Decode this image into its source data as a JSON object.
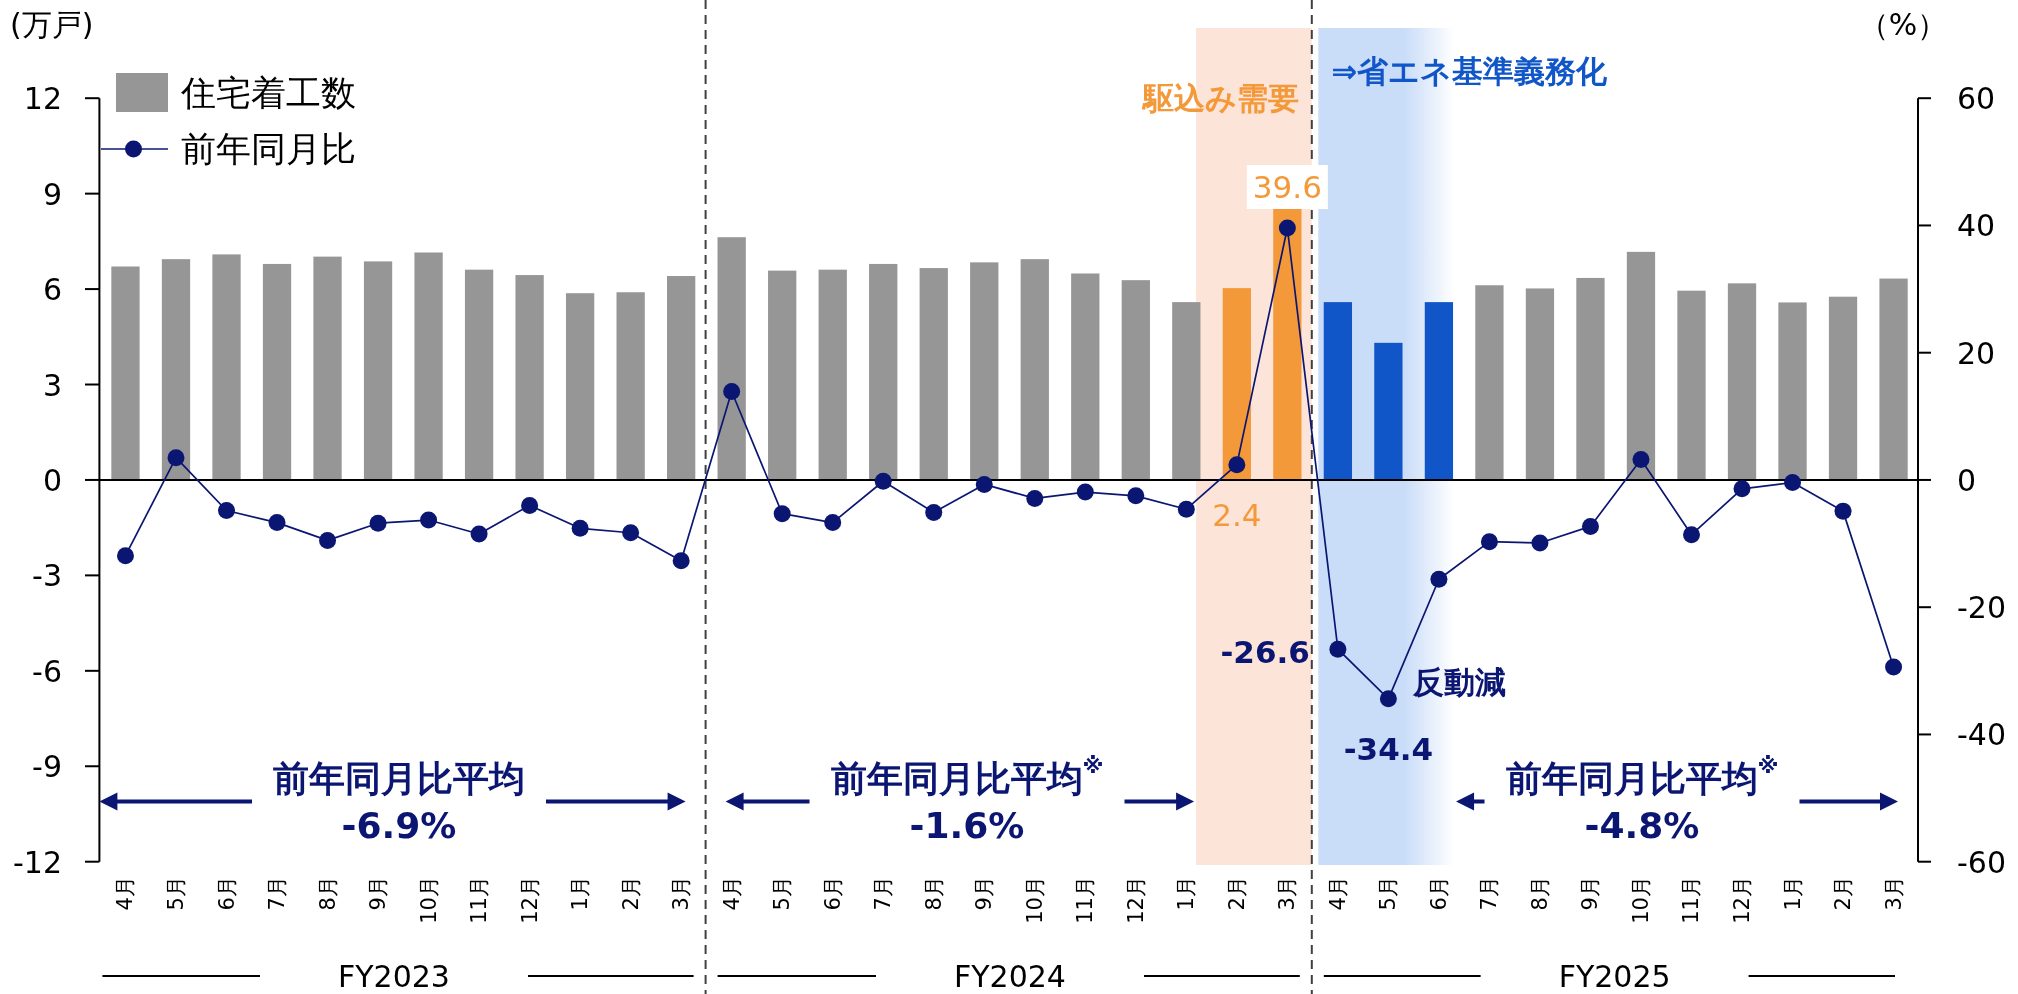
{
  "chart_data": {
    "type": "bar",
    "ylabel": "(万戸)",
    "y2label": "（%）",
    "x": [
      "2023-04",
      "2023-05",
      "2023-06",
      "2023-07",
      "2023-08",
      "2023-09",
      "2023-10",
      "2023-11",
      "2023-12",
      "2024-01",
      "2024-02",
      "2024-03",
      "2024-04",
      "2024-05",
      "2024-06",
      "2024-07",
      "2024-08",
      "2024-09",
      "2024-10",
      "2024-11",
      "2024-12",
      "2025-01",
      "2025-02",
      "2025-03",
      "2025-04",
      "2025-05",
      "2025-06",
      "2025-07",
      "2025-08",
      "2025-09",
      "2025-10",
      "2025-11",
      "2025-12",
      "2026-01",
      "2026-02",
      "2026-03"
    ],
    "xlim": [
      "2023-03-16",
      "2026-03-16"
    ],
    "xticks": [
      {
        "value": "2023-04",
        "label": "4月"
      },
      {
        "value": "2023-05",
        "label": "5月"
      },
      {
        "value": "2023-06",
        "label": "6月"
      },
      {
        "value": "2023-07",
        "label": "7月"
      },
      {
        "value": "2023-08",
        "label": "8月"
      },
      {
        "value": "2023-09",
        "label": "9月"
      },
      {
        "value": "2023-10",
        "label": "10月"
      },
      {
        "value": "2023-11",
        "label": "11月"
      },
      {
        "value": "2023-12",
        "label": "12月"
      },
      {
        "value": "2024-01",
        "label": "1月"
      },
      {
        "value": "2024-02",
        "label": "2月"
      },
      {
        "value": "2024-03",
        "label": "3月"
      },
      {
        "value": "2024-04",
        "label": "4月"
      },
      {
        "value": "2024-05",
        "label": "5月"
      },
      {
        "value": "2024-06",
        "label": "6月"
      },
      {
        "value": "2024-07",
        "label": "7月"
      },
      {
        "value": "2024-08",
        "label": "8月"
      },
      {
        "value": "2024-09",
        "label": "9月"
      },
      {
        "value": "2024-10",
        "label": "10月"
      },
      {
        "value": "2024-11",
        "label": "11月"
      },
      {
        "value": "2024-12",
        "label": "12月"
      },
      {
        "value": "2025-01",
        "label": "1月"
      },
      {
        "value": "2025-02",
        "label": "2月"
      },
      {
        "value": "2025-03",
        "label": "3月"
      },
      {
        "value": "2025-04",
        "label": "4月"
      },
      {
        "value": "2025-05",
        "label": "5月"
      },
      {
        "value": "2025-06",
        "label": "6月"
      },
      {
        "value": "2025-07",
        "label": "7月"
      },
      {
        "value": "2025-08",
        "label": "8月"
      },
      {
        "value": "2025-09",
        "label": "9月"
      },
      {
        "value": "2025-10",
        "label": "10月"
      },
      {
        "value": "2025-11",
        "label": "11月"
      },
      {
        "value": "2025-12",
        "label": "12月"
      },
      {
        "value": "2026-01",
        "label": "1月"
      },
      {
        "value": "2026-02",
        "label": "2月"
      },
      {
        "value": "2026-03",
        "label": "3月"
      }
    ],
    "ylim": [
      -12,
      12
    ],
    "yticks": [
      -12,
      -9,
      -6,
      -3,
      0,
      3,
      6,
      9,
      12
    ],
    "y2lim": [
      -60,
      60
    ],
    "y2ticks": [
      -60,
      -40,
      -20,
      0,
      20,
      40,
      60
    ],
    "series": [
      {
        "name": "住宅着工数",
        "color": "#969696",
        "colors": [
          "#969696",
          "#969696",
          "#969696",
          "#969696",
          "#969696",
          "#969696",
          "#969696",
          "#969696",
          "#969696",
          "#969696",
          "#969696",
          "#969696",
          "#969696",
          "#969696",
          "#969696",
          "#969696",
          "#969696",
          "#969696",
          "#969696",
          "#969696",
          "#969696",
          "#969696",
          "#f4993a",
          "#f4993a",
          "#1156c8",
          "#1156c8",
          "#1156c8",
          "#969696",
          "#969696",
          "#969696",
          "#969696",
          "#969696",
          "#969696",
          "#969696",
          "#969696",
          "#969696"
        ],
        "values": [
          6.71,
          6.94,
          7.09,
          6.79,
          7.02,
          6.87,
          7.15,
          6.61,
          6.44,
          5.87,
          5.9,
          6.41,
          7.63,
          6.58,
          6.61,
          6.79,
          6.66,
          6.84,
          6.94,
          6.49,
          6.28,
          5.59,
          6.03,
          8.56,
          5.59,
          4.31,
          5.59,
          6.12,
          6.02,
          6.35,
          7.17,
          5.95,
          6.18,
          5.58,
          5.76,
          6.33
        ]
      },
      {
        "name": "前年同月比",
        "type": "line",
        "axis": "y2",
        "color": "#0b1673",
        "marker": "circle",
        "values": [
          -11.9,
          3.5,
          -4.8,
          -6.7,
          -9.5,
          -6.8,
          -6.3,
          -8.5,
          -4.0,
          -7.6,
          -8.3,
          -12.7,
          13.9,
          -5.3,
          -6.7,
          -0.2,
          -5.1,
          -0.7,
          -2.9,
          -1.9,
          -2.5,
          -4.6,
          2.4,
          39.6,
          -26.6,
          -34.4,
          -15.6,
          -9.7,
          -9.9,
          -7.3,
          3.2,
          -8.6,
          -1.4,
          -0.4,
          -4.9,
          -29.4
        ],
        "value_labels": [
          null,
          null,
          null,
          null,
          null,
          null,
          null,
          null,
          null,
          null,
          null,
          null,
          null,
          null,
          null,
          null,
          null,
          null,
          null,
          null,
          null,
          null,
          "2.4",
          "39.6",
          "-26.6",
          "-34.4",
          null,
          null,
          null,
          null,
          null,
          null,
          null,
          null,
          null,
          null
        ]
      }
    ],
    "bands": [
      {
        "axis": "x",
        "from": "2025-01-07",
        "to": "2025-03-16",
        "label": "駆込み需要",
        "color": "#fce4d8"
      },
      {
        "axis": "x",
        "from": "2025-03-20",
        "to": "2025-06-10",
        "label": "⇒省エネ基準義務化",
        "color": "#c9dcf8"
      }
    ],
    "ref_lines": [
      {
        "axis": "x",
        "value": "2024-03-16",
        "line_style": "dashed",
        "color": "#404040"
      },
      {
        "axis": "x",
        "value": "2025-03-16",
        "line_style": "dashed",
        "color": "#404040"
      }
    ],
    "annotations": [
      "前年同月比平均\n-6.9%",
      "前年同月比平均$^{※}$\n-1.6%",
      "前年同月比平均$^{※}$\n-4.8%",
      "反動減",
      "FY2023",
      "FY2024",
      "FY2025"
    ],
    "legend": "top left"
  }
}
